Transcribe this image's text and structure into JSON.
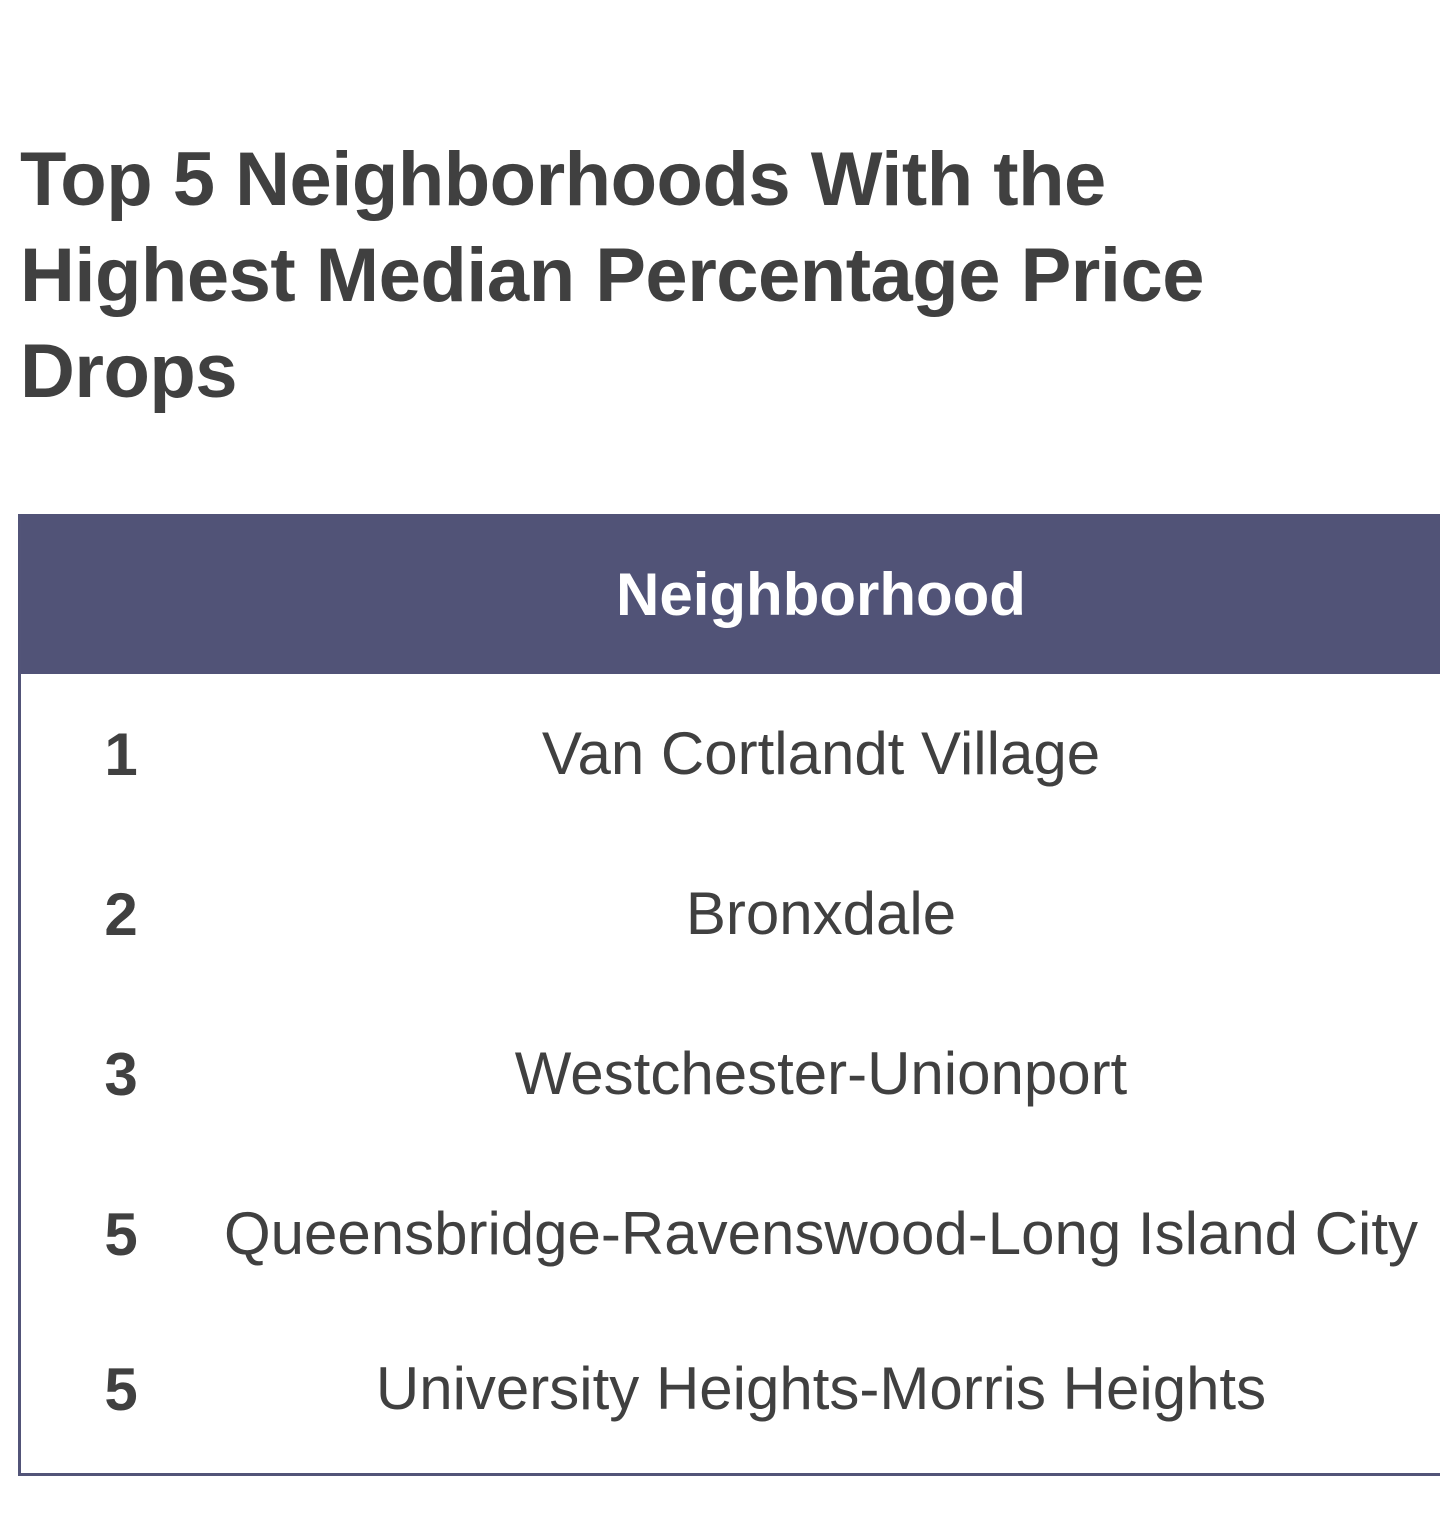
{
  "title": "Top 5 Neighborhoods With the Highest Median Percentage Price Drops",
  "table": {
    "header": {
      "rank": "",
      "neighborhood": "Neighborhood"
    },
    "rows": [
      {
        "rank": "1",
        "neighborhood": "Van Cortlandt Village"
      },
      {
        "rank": "2",
        "neighborhood": "Bronxdale"
      },
      {
        "rank": "3",
        "neighborhood": "Westchester-Unionport"
      },
      {
        "rank": "5",
        "neighborhood": "Queensbridge-Ravenswood-Long Island City"
      },
      {
        "rank": "5",
        "neighborhood": "University Heights-Morris Heights"
      }
    ]
  },
  "colors": {
    "header_bg": "#515377",
    "text": "#404040",
    "border": "#525478"
  }
}
